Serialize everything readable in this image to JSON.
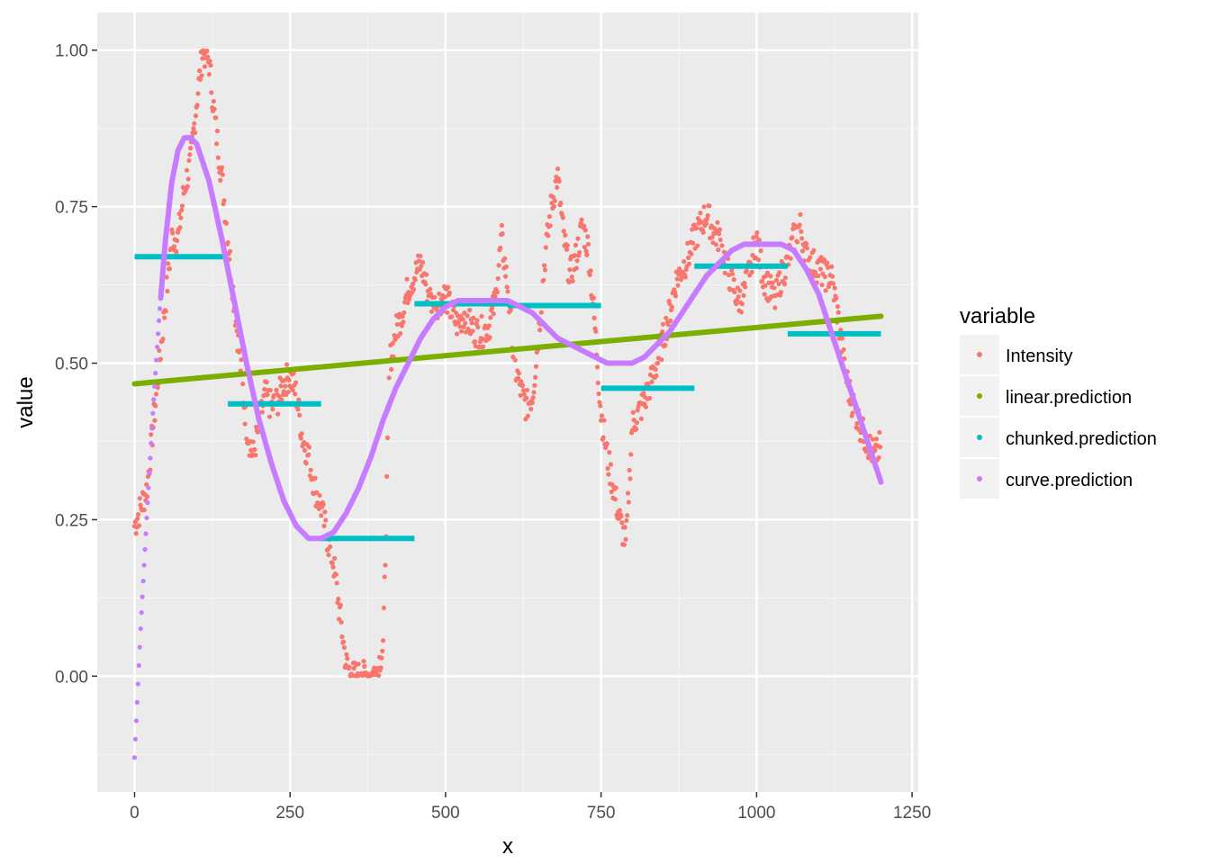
{
  "chart_data": {
    "type": "scatter",
    "xlabel": "x",
    "ylabel": "value",
    "xlim": [
      -60,
      1260
    ],
    "ylim": [
      -0.185,
      1.06
    ],
    "x_ticks": [
      0,
      250,
      500,
      750,
      1000,
      1250
    ],
    "x_tick_labels": [
      "0",
      "250",
      "500",
      "750",
      "1000",
      "1250"
    ],
    "y_ticks": [
      0.0,
      0.25,
      0.5,
      0.75,
      1.0
    ],
    "y_tick_labels": [
      "0.00",
      "0.25",
      "0.50",
      "0.75",
      "1.00"
    ],
    "grid": true,
    "legend": {
      "title": "variable",
      "position": "right"
    },
    "series": [
      {
        "name": "Intensity",
        "color": "#F8766D",
        "mark": "points",
        "x": [
          0,
          10,
          20,
          30,
          40,
          50,
          60,
          70,
          80,
          90,
          100,
          110,
          120,
          130,
          140,
          150,
          160,
          170,
          180,
          190,
          200,
          210,
          220,
          230,
          240,
          250,
          260,
          270,
          280,
          290,
          300,
          310,
          320,
          330,
          340,
          350,
          360,
          370,
          380,
          390,
          400,
          410,
          420,
          430,
          440,
          450,
          460,
          470,
          480,
          490,
          500,
          510,
          520,
          530,
          540,
          550,
          560,
          570,
          580,
          590,
          600,
          610,
          620,
          630,
          640,
          650,
          660,
          670,
          680,
          690,
          700,
          710,
          720,
          730,
          740,
          750,
          760,
          770,
          780,
          790,
          800,
          810,
          820,
          830,
          840,
          850,
          860,
          870,
          880,
          890,
          900,
          910,
          920,
          930,
          940,
          950,
          960,
          970,
          980,
          990,
          1000,
          1010,
          1020,
          1030,
          1040,
          1050,
          1060,
          1070,
          1080,
          1090,
          1100,
          1110,
          1120,
          1130,
          1140,
          1150,
          1160,
          1170,
          1180,
          1190,
          1200
        ],
        "y": [
          0.24,
          0.27,
          0.3,
          0.4,
          0.5,
          0.6,
          0.7,
          0.7,
          0.78,
          0.82,
          0.92,
          1.0,
          0.98,
          0.88,
          0.8,
          0.7,
          0.6,
          0.5,
          0.4,
          0.35,
          0.4,
          0.45,
          0.43,
          0.44,
          0.47,
          0.48,
          0.45,
          0.38,
          0.35,
          0.3,
          0.27,
          0.22,
          0.18,
          0.1,
          0.02,
          0.0,
          0.0,
          0.0,
          0.0,
          0.01,
          0.05,
          0.5,
          0.55,
          0.58,
          0.62,
          0.64,
          0.66,
          0.62,
          0.59,
          0.6,
          0.61,
          0.58,
          0.56,
          0.58,
          0.56,
          0.55,
          0.55,
          0.56,
          0.6,
          0.7,
          0.62,
          0.5,
          0.46,
          0.43,
          0.45,
          0.55,
          0.67,
          0.75,
          0.8,
          0.7,
          0.64,
          0.67,
          0.72,
          0.68,
          0.56,
          0.42,
          0.35,
          0.3,
          0.25,
          0.21,
          0.4,
          0.42,
          0.44,
          0.47,
          0.5,
          0.54,
          0.58,
          0.63,
          0.65,
          0.67,
          0.7,
          0.72,
          0.74,
          0.71,
          0.7,
          0.66,
          0.63,
          0.6,
          0.61,
          0.66,
          0.7,
          0.64,
          0.62,
          0.6,
          0.64,
          0.66,
          0.7,
          0.72,
          0.67,
          0.66,
          0.65,
          0.64,
          0.64,
          0.58,
          0.5,
          0.45,
          0.42,
          0.39,
          0.37,
          0.35,
          0.37
        ]
      },
      {
        "name": "linear.prediction",
        "color": "#7CAE00",
        "mark": "line",
        "x": [
          0,
          1200
        ],
        "y": [
          0.467,
          0.575
        ]
      },
      {
        "name": "chunked.prediction",
        "color": "#00BFC4",
        "mark": "segments",
        "segments": [
          {
            "x": [
              0,
              150
            ],
            "y": 0.67
          },
          {
            "x": [
              150,
              300
            ],
            "y": 0.435
          },
          {
            "x": [
              300,
              450
            ],
            "y": 0.22
          },
          {
            "x": [
              450,
              600
            ],
            "y": 0.595
          },
          {
            "x": [
              600,
              750
            ],
            "y": 0.592
          },
          {
            "x": [
              750,
              900
            ],
            "y": 0.46
          },
          {
            "x": [
              900,
              1050
            ],
            "y": 0.655
          },
          {
            "x": [
              1050,
              1200
            ],
            "y": 0.547
          }
        ]
      },
      {
        "name": "curve.prediction",
        "color": "#C77CFF",
        "mark": "line",
        "x": [
          0,
          10,
          20,
          30,
          40,
          50,
          60,
          70,
          80,
          90,
          100,
          120,
          140,
          160,
          180,
          200,
          220,
          240,
          260,
          280,
          300,
          320,
          340,
          360,
          380,
          400,
          420,
          440,
          460,
          480,
          500,
          520,
          540,
          560,
          580,
          600,
          620,
          640,
          660,
          680,
          700,
          720,
          740,
          760,
          780,
          800,
          820,
          840,
          860,
          880,
          900,
          920,
          940,
          960,
          980,
          1000,
          1020,
          1040,
          1060,
          1080,
          1100,
          1120,
          1140,
          1160,
          1180,
          1200
        ],
        "y": [
          -0.13,
          0.08,
          0.26,
          0.43,
          0.58,
          0.7,
          0.79,
          0.84,
          0.86,
          0.86,
          0.85,
          0.79,
          0.7,
          0.6,
          0.5,
          0.41,
          0.34,
          0.28,
          0.24,
          0.22,
          0.22,
          0.23,
          0.26,
          0.3,
          0.35,
          0.41,
          0.46,
          0.5,
          0.54,
          0.57,
          0.59,
          0.6,
          0.6,
          0.6,
          0.6,
          0.6,
          0.59,
          0.58,
          0.56,
          0.54,
          0.53,
          0.52,
          0.51,
          0.5,
          0.5,
          0.5,
          0.51,
          0.53,
          0.55,
          0.58,
          0.61,
          0.64,
          0.66,
          0.68,
          0.69,
          0.69,
          0.69,
          0.69,
          0.68,
          0.65,
          0.61,
          0.55,
          0.49,
          0.43,
          0.37,
          0.31
        ]
      }
    ]
  }
}
